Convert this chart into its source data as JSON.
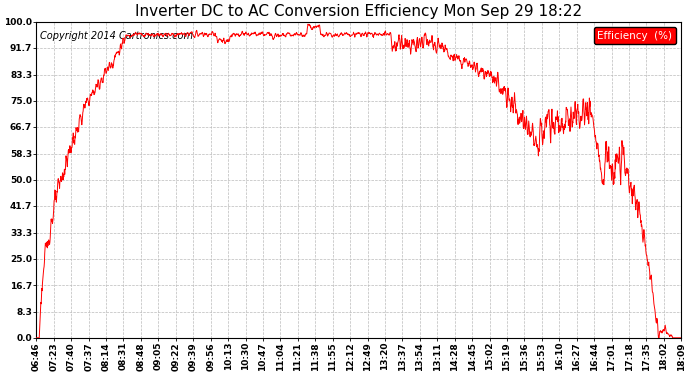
{
  "title": "Inverter DC to AC Conversion Efficiency Mon Sep 29 18:22",
  "copyright": "Copyright 2014 Cartronics.com",
  "legend_label": "Efficiency  (%)",
  "legend_bg": "#ff0000",
  "legend_fg": "#ffffff",
  "line_color": "#ff0000",
  "bg_color": "#ffffff",
  "plot_bg": "#ffffff",
  "grid_color": "#bbbbbb",
  "ylim": [
    0,
    100
  ],
  "yticks": [
    0.0,
    8.3,
    16.7,
    25.0,
    33.3,
    41.7,
    50.0,
    58.3,
    66.7,
    75.0,
    83.3,
    91.7,
    100.0
  ],
  "xtick_labels": [
    "06:46",
    "07:23",
    "07:40",
    "07:37",
    "08:14",
    "08:31",
    "08:48",
    "09:05",
    "09:22",
    "09:39",
    "09:56",
    "10:13",
    "10:30",
    "10:47",
    "11:04",
    "11:21",
    "11:38",
    "11:55",
    "12:12",
    "12:49",
    "13:20",
    "13:37",
    "13:54",
    "13:11",
    "14:28",
    "14:45",
    "15:02",
    "15:19",
    "15:36",
    "15:53",
    "16:10",
    "16:27",
    "16:44",
    "17:01",
    "17:18",
    "17:35",
    "18:02",
    "18:09"
  ],
  "title_fontsize": 11,
  "tick_fontsize": 6.5,
  "copyright_fontsize": 7
}
